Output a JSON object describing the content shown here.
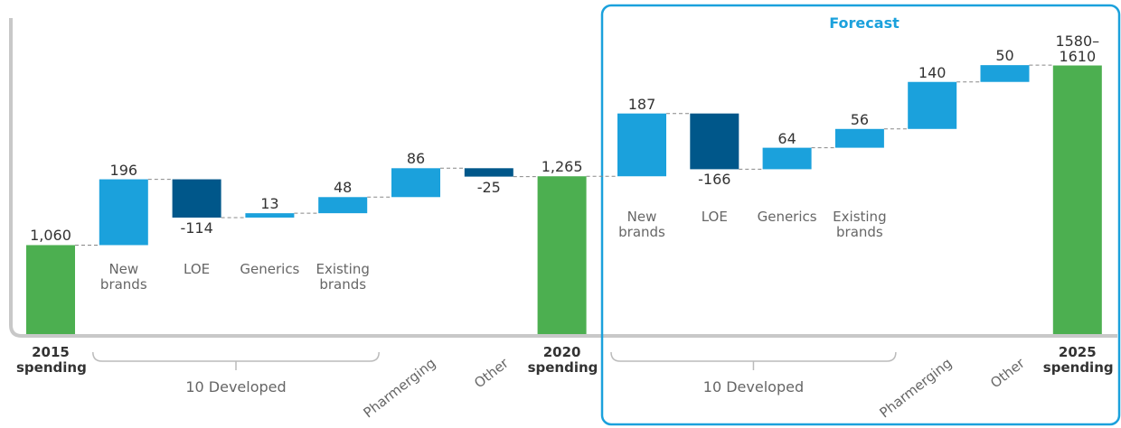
{
  "chart_data": {
    "type": "waterfall",
    "annotation": "Forecast",
    "categories": [
      "2015 spending",
      "New brands",
      "LOE",
      "Generics",
      "Existing brands",
      "Pharmerging",
      "Other",
      "2020 spending",
      "New brands",
      "LOE",
      "Generics",
      "Existing brands",
      "Pharmerging",
      "Other",
      "2025 spending"
    ],
    "values": [
      1060,
      196,
      -114,
      13,
      48,
      86,
      -25,
      1265,
      187,
      -166,
      64,
      56,
      140,
      50,
      1595
    ],
    "value_labels": [
      "1,060",
      "196",
      "-114",
      "13",
      "48",
      "86",
      "-25",
      "1,265",
      "187",
      "-166",
      "64",
      "56",
      "140",
      "50",
      "1580–1610"
    ],
    "measure": [
      "total",
      "relative",
      "relative",
      "relative",
      "relative",
      "relative",
      "relative",
      "total",
      "relative",
      "relative",
      "relative",
      "relative",
      "relative",
      "relative",
      "total"
    ],
    "groups": [
      {
        "label": "10 Developed",
        "from": 1,
        "to": 4
      },
      {
        "label": "10 Developed",
        "from": 8,
        "to": 11
      }
    ],
    "colors": {
      "total": "#4caf50",
      "increase": "#1ba1dc",
      "decrease": "#00578a"
    },
    "ylim": [
      795,
      1790
    ]
  }
}
